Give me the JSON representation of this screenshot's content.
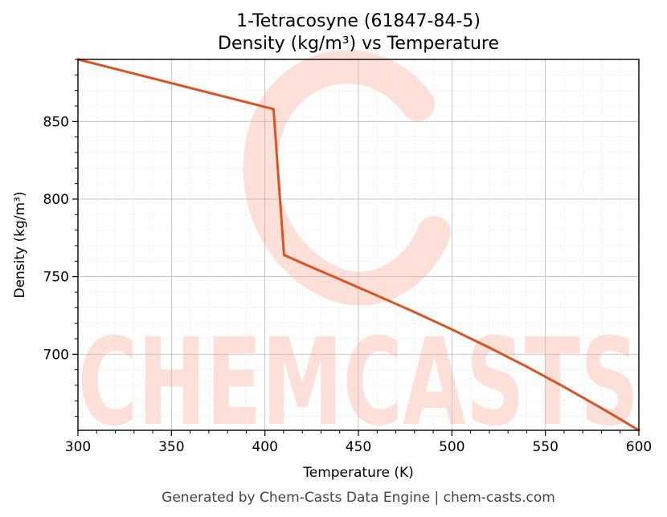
{
  "chart_data": {
    "type": "line",
    "title": "1-Tetracosyne (61847-84-5)",
    "subtitle": "Density (kg/m³) vs Temperature",
    "xlabel": "Temperature (K)",
    "ylabel": "Density (kg/m³)",
    "xlim": [
      300,
      600
    ],
    "ylim": [
      651,
      890
    ],
    "x_ticks": [
      300,
      350,
      400,
      450,
      500,
      550,
      600
    ],
    "y_ticks": [
      700,
      750,
      800,
      850
    ],
    "grid": true,
    "legend": "none",
    "line_color": "#d95323",
    "series": [
      {
        "x": [
          300,
          404.6,
          410.2,
          420,
          440,
          460,
          480,
          500,
          520,
          540,
          560,
          580,
          600
        ],
        "y": [
          890,
          858,
          764,
          758.7,
          748.3,
          737.8,
          727.2,
          716,
          704.3,
          692,
          679,
          665.3,
          651
        ]
      }
    ]
  },
  "watermark": {
    "text": "CHEMCASTS",
    "color": "#ffddd5"
  },
  "footer": {
    "text": "Generated by Chem-Casts Data Engine | chem-casts.com"
  }
}
